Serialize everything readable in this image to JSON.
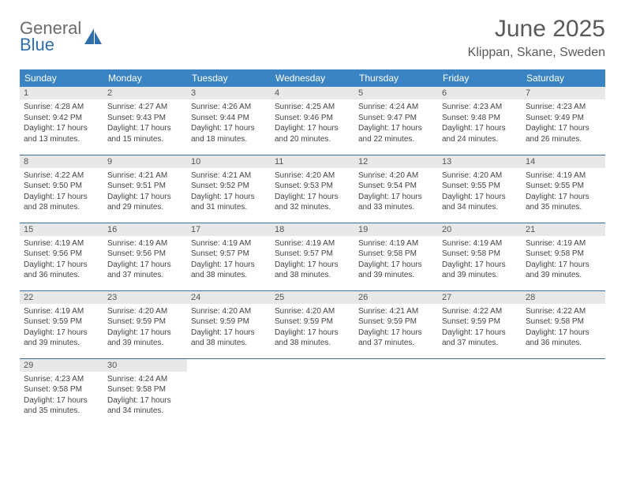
{
  "brand": {
    "word1": "General",
    "word2": "Blue"
  },
  "title": "June 2025",
  "location": "Klippan, Skane, Sweden",
  "colors": {
    "header_bg": "#3b84c4",
    "header_text": "#ffffff",
    "daynum_bg": "#e8e8e8",
    "rule": "#3b6f9b",
    "brand_gray": "#6b6b6b",
    "brand_blue": "#2f6fab"
  },
  "weekdays": [
    "Sunday",
    "Monday",
    "Tuesday",
    "Wednesday",
    "Thursday",
    "Friday",
    "Saturday"
  ],
  "days": [
    {
      "n": "1",
      "sr": "4:28 AM",
      "ss": "9:42 PM",
      "dl": "17 hours and 13 minutes."
    },
    {
      "n": "2",
      "sr": "4:27 AM",
      "ss": "9:43 PM",
      "dl": "17 hours and 15 minutes."
    },
    {
      "n": "3",
      "sr": "4:26 AM",
      "ss": "9:44 PM",
      "dl": "17 hours and 18 minutes."
    },
    {
      "n": "4",
      "sr": "4:25 AM",
      "ss": "9:46 PM",
      "dl": "17 hours and 20 minutes."
    },
    {
      "n": "5",
      "sr": "4:24 AM",
      "ss": "9:47 PM",
      "dl": "17 hours and 22 minutes."
    },
    {
      "n": "6",
      "sr": "4:23 AM",
      "ss": "9:48 PM",
      "dl": "17 hours and 24 minutes."
    },
    {
      "n": "7",
      "sr": "4:23 AM",
      "ss": "9:49 PM",
      "dl": "17 hours and 26 minutes."
    },
    {
      "n": "8",
      "sr": "4:22 AM",
      "ss": "9:50 PM",
      "dl": "17 hours and 28 minutes."
    },
    {
      "n": "9",
      "sr": "4:21 AM",
      "ss": "9:51 PM",
      "dl": "17 hours and 29 minutes."
    },
    {
      "n": "10",
      "sr": "4:21 AM",
      "ss": "9:52 PM",
      "dl": "17 hours and 31 minutes."
    },
    {
      "n": "11",
      "sr": "4:20 AM",
      "ss": "9:53 PM",
      "dl": "17 hours and 32 minutes."
    },
    {
      "n": "12",
      "sr": "4:20 AM",
      "ss": "9:54 PM",
      "dl": "17 hours and 33 minutes."
    },
    {
      "n": "13",
      "sr": "4:20 AM",
      "ss": "9:55 PM",
      "dl": "17 hours and 34 minutes."
    },
    {
      "n": "14",
      "sr": "4:19 AM",
      "ss": "9:55 PM",
      "dl": "17 hours and 35 minutes."
    },
    {
      "n": "15",
      "sr": "4:19 AM",
      "ss": "9:56 PM",
      "dl": "17 hours and 36 minutes."
    },
    {
      "n": "16",
      "sr": "4:19 AM",
      "ss": "9:56 PM",
      "dl": "17 hours and 37 minutes."
    },
    {
      "n": "17",
      "sr": "4:19 AM",
      "ss": "9:57 PM",
      "dl": "17 hours and 38 minutes."
    },
    {
      "n": "18",
      "sr": "4:19 AM",
      "ss": "9:57 PM",
      "dl": "17 hours and 38 minutes."
    },
    {
      "n": "19",
      "sr": "4:19 AM",
      "ss": "9:58 PM",
      "dl": "17 hours and 39 minutes."
    },
    {
      "n": "20",
      "sr": "4:19 AM",
      "ss": "9:58 PM",
      "dl": "17 hours and 39 minutes."
    },
    {
      "n": "21",
      "sr": "4:19 AM",
      "ss": "9:58 PM",
      "dl": "17 hours and 39 minutes."
    },
    {
      "n": "22",
      "sr": "4:19 AM",
      "ss": "9:59 PM",
      "dl": "17 hours and 39 minutes."
    },
    {
      "n": "23",
      "sr": "4:20 AM",
      "ss": "9:59 PM",
      "dl": "17 hours and 39 minutes."
    },
    {
      "n": "24",
      "sr": "4:20 AM",
      "ss": "9:59 PM",
      "dl": "17 hours and 38 minutes."
    },
    {
      "n": "25",
      "sr": "4:20 AM",
      "ss": "9:59 PM",
      "dl": "17 hours and 38 minutes."
    },
    {
      "n": "26",
      "sr": "4:21 AM",
      "ss": "9:59 PM",
      "dl": "17 hours and 37 minutes."
    },
    {
      "n": "27",
      "sr": "4:22 AM",
      "ss": "9:59 PM",
      "dl": "17 hours and 37 minutes."
    },
    {
      "n": "28",
      "sr": "4:22 AM",
      "ss": "9:58 PM",
      "dl": "17 hours and 36 minutes."
    },
    {
      "n": "29",
      "sr": "4:23 AM",
      "ss": "9:58 PM",
      "dl": "17 hours and 35 minutes."
    },
    {
      "n": "30",
      "sr": "4:24 AM",
      "ss": "9:58 PM",
      "dl": "17 hours and 34 minutes."
    }
  ],
  "labels": {
    "sunrise": "Sunrise: ",
    "sunset": "Sunset: ",
    "daylight": "Daylight: "
  },
  "layout": {
    "columns": 7,
    "start_offset": 0,
    "total_cells": 35
  }
}
